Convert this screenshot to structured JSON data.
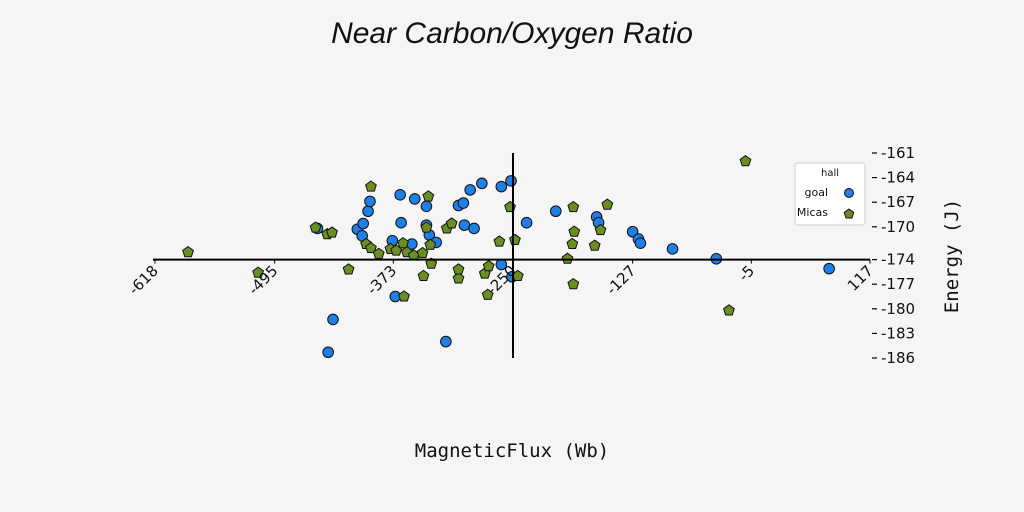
{
  "chart_data": {
    "type": "scatter",
    "title": "Near Carbon/Oxygen Ratio",
    "xlabel": "MagneticFlux (Wb)",
    "ylabel": "Energy (J)",
    "xlim": [
      -618,
      117
    ],
    "ylim": [
      -186,
      -161
    ],
    "x_ticks": [
      -618,
      -495,
      -373,
      -250,
      -127,
      -5,
      117
    ],
    "x_tick_labels": [
      "-618",
      "-495",
      "-373",
      "-250",
      "-127",
      "-5",
      "117"
    ],
    "y_ticks": [
      -161,
      -164,
      -167,
      -170,
      -174,
      -177,
      -180,
      -183,
      -186
    ],
    "y_tick_labels": [
      "-161",
      "-164",
      "-167",
      "-170",
      "-174",
      "-177",
      "-180",
      "-183",
      "-186"
    ],
    "axis_cross": {
      "x": -250,
      "y": -174
    },
    "grid": false,
    "legend": {
      "title": "hall",
      "position": "top-right"
    },
    "series": [
      {
        "name": "goal",
        "marker": "circle",
        "color": "#1f7fe6",
        "points": [
          [
            -451,
            -170.2
          ],
          [
            -440,
            -185.3
          ],
          [
            -435,
            -181.3
          ],
          [
            -410,
            -170.3
          ],
          [
            -405,
            -171.1
          ],
          [
            -404,
            -169.6
          ],
          [
            -399,
            -168.1
          ],
          [
            -397,
            -166.9
          ],
          [
            -374,
            -171.7
          ],
          [
            -371,
            -178.5
          ],
          [
            -366,
            -166.1
          ],
          [
            -365,
            -169.5
          ],
          [
            -354,
            -172.1
          ],
          [
            -351,
            -166.6
          ],
          [
            -339,
            -167.5
          ],
          [
            -339,
            -169.8
          ],
          [
            -336,
            -171.0
          ],
          [
            -329,
            -171.9
          ],
          [
            -319,
            -184.0
          ],
          [
            -306,
            -167.4
          ],
          [
            -301,
            -167.1
          ],
          [
            -300,
            -169.8
          ],
          [
            -294,
            -165.5
          ],
          [
            -290,
            -170.2
          ],
          [
            -282,
            -164.7
          ],
          [
            -262,
            -165.1
          ],
          [
            -262,
            -174.6
          ],
          [
            -252,
            -164.4
          ],
          [
            -251,
            -176.1
          ],
          [
            -236,
            -169.5
          ],
          [
            -206,
            -168.1
          ],
          [
            -164,
            -168.8
          ],
          [
            -162,
            -169.5
          ],
          [
            -127,
            -170.6
          ],
          [
            -121,
            -171.5
          ],
          [
            -119,
            -172.0
          ],
          [
            -86,
            -172.7
          ],
          [
            -41,
            -173.9
          ],
          [
            75,
            -175.1
          ]
        ]
      },
      {
        "name": "Micas",
        "marker": "pentagon",
        "color": "#6b8e23",
        "points": [
          [
            -584,
            -173.1
          ],
          [
            -512,
            -175.6
          ],
          [
            -453,
            -170.1
          ],
          [
            -441,
            -170.9
          ],
          [
            -436,
            -170.7
          ],
          [
            -419,
            -175.2
          ],
          [
            -401,
            -172.1
          ],
          [
            -396,
            -172.6
          ],
          [
            -396,
            -165.1
          ],
          [
            -388,
            -173.3
          ],
          [
            -376,
            -172.7
          ],
          [
            -370,
            -172.9
          ],
          [
            -363,
            -172.0
          ],
          [
            -362,
            -178.5
          ],
          [
            -359,
            -173.1
          ],
          [
            -352,
            -173.5
          ],
          [
            -343,
            -173.2
          ],
          [
            -342,
            -176.0
          ],
          [
            -339,
            -170.1
          ],
          [
            -337,
            -166.3
          ],
          [
            -335,
            -172.2
          ],
          [
            -334,
            -174.5
          ],
          [
            -318,
            -170.2
          ],
          [
            -313,
            -169.6
          ],
          [
            -306,
            -176.3
          ],
          [
            -306,
            -175.2
          ],
          [
            -279,
            -175.7
          ],
          [
            -276,
            -178.3
          ],
          [
            -275,
            -174.8
          ],
          [
            -264,
            -171.8
          ],
          [
            -253,
            -167.6
          ],
          [
            -248,
            -171.6
          ],
          [
            -245,
            -176.0
          ],
          [
            -194,
            -173.9
          ],
          [
            -189,
            -172.1
          ],
          [
            -188,
            -177.0
          ],
          [
            -187,
            -170.6
          ],
          [
            -188,
            -167.6
          ],
          [
            -166,
            -172.3
          ],
          [
            -160,
            -170.4
          ],
          [
            -153,
            -167.3
          ],
          [
            -28,
            -180.2
          ],
          [
            -11,
            -162.0
          ]
        ]
      }
    ]
  }
}
